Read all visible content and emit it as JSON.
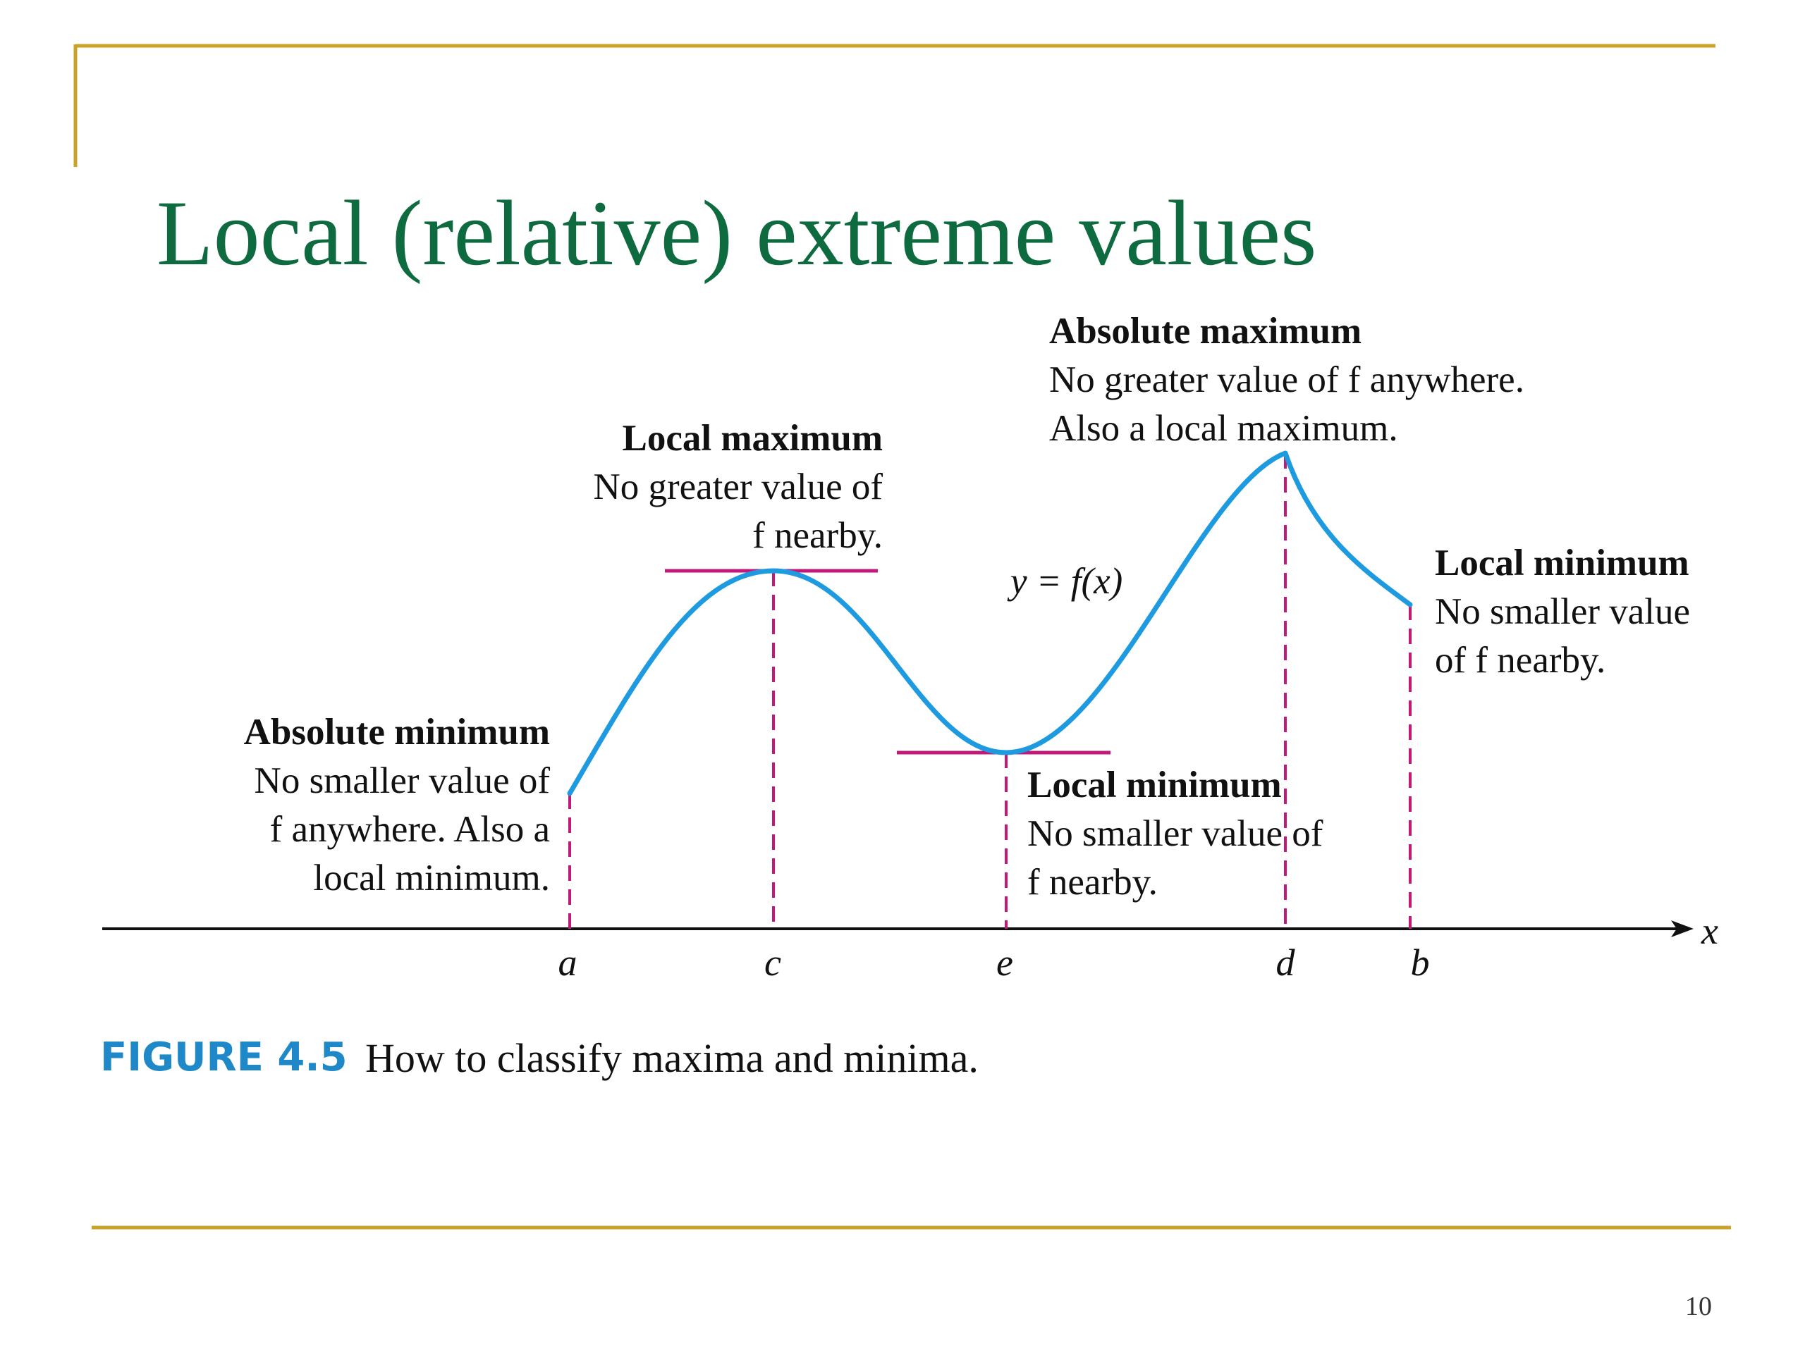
{
  "slide": {
    "title": "Local (relative) extreme values",
    "page_number": "10",
    "title_color": "#0E6B3F",
    "rule_color": "#C9A227"
  },
  "figure": {
    "label": "FIGURE 4.5",
    "label_color": "#1E88C8",
    "caption": "How to classify maxima and minima.",
    "curve_label": "y = f(x)",
    "curve_color": "#1E9BE0",
    "marker_color": "#C2187A",
    "axis_label": "x",
    "ticks": [
      "a",
      "c",
      "e",
      "d",
      "b"
    ],
    "annotations": {
      "absolute_minimum": {
        "heading": "Absolute minimum",
        "lines": [
          "No smaller value of",
          "f anywhere. Also a",
          "local minimum."
        ]
      },
      "local_maximum": {
        "heading": "Local maximum",
        "lines": [
          "No greater value of",
          "f nearby."
        ]
      },
      "absolute_maximum": {
        "heading": "Absolute maximum",
        "lines": [
          "No greater value of f anywhere.",
          "Also a local maximum."
        ]
      },
      "local_minimum_e": {
        "heading": "Local minimum",
        "lines": [
          "No smaller value of",
          "f nearby."
        ]
      },
      "local_minimum_b": {
        "heading": "Local minimum",
        "lines": [
          "No smaller value",
          "of f nearby."
        ]
      }
    }
  }
}
